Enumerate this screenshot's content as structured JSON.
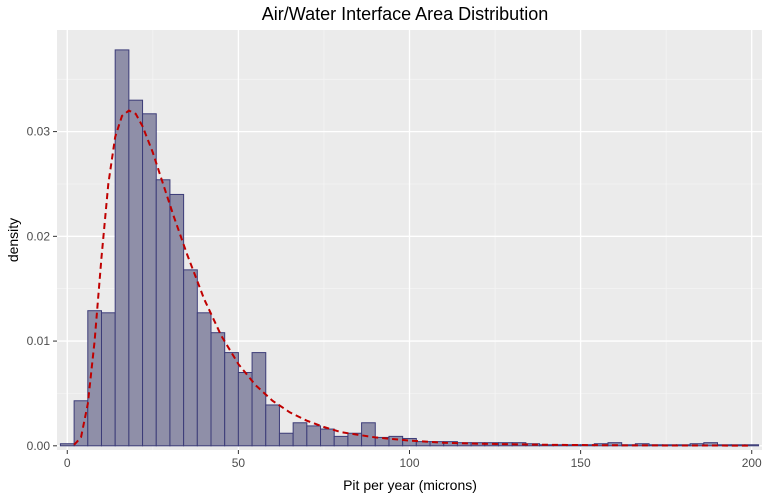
{
  "chart_data": {
    "type": "bar",
    "title": "Air/Water Interface Area Distribution",
    "xlabel": "Pit per year (microns)",
    "ylabel": "density",
    "xlim": [
      -3,
      203
    ],
    "ylim": [
      -0.0004,
      0.0397
    ],
    "x_ticks": [
      0,
      50,
      100,
      150,
      200
    ],
    "x_tick_labels": [
      "0",
      "50",
      "100",
      "150",
      "200"
    ],
    "y_ticks": [
      0,
      0.01,
      0.02,
      0.03
    ],
    "y_tick_labels": [
      "0.00",
      "0.01",
      "0.02",
      "0.03"
    ],
    "grid": true,
    "bin_width": 4,
    "bins_start": -2,
    "bin_values": [
      0.0002,
      0.0043,
      0.0129,
      0.0127,
      0.0378,
      0.033,
      0.0317,
      0.0254,
      0.024,
      0.0168,
      0.0127,
      0.0108,
      0.0089,
      0.007,
      0.0089,
      0.0039,
      0.0012,
      0.0022,
      0.0019,
      0.0016,
      0.0009,
      0.0012,
      0.0022,
      0.0008,
      0.0009,
      0.0007,
      0.0004,
      0.0004,
      0.0004,
      0.0003,
      0.0003,
      0.0003,
      0.0003,
      0.0003,
      0.0002,
      0.0001,
      0.0001,
      0.0001,
      0.0001,
      0.0002,
      0.0003,
      0.0001,
      0.0002,
      0.0001,
      0.0001,
      0.0001,
      0.0002,
      0.0003,
      0.0001,
      0.0001,
      0.0001
    ],
    "bar_fill": "#8f8fa8",
    "bar_stroke": "#3c3c78",
    "density_curve": {
      "style": "dashed",
      "color": "#c00000",
      "x": [
        2,
        4,
        6,
        8,
        10,
        12,
        14,
        16,
        18,
        20,
        22,
        25,
        28,
        31,
        35,
        40,
        45,
        50,
        55,
        60,
        65,
        70,
        75,
        80,
        90,
        100,
        110,
        120,
        140,
        160,
        180,
        200
      ],
      "y": [
        0.0001,
        0.0008,
        0.004,
        0.01,
        0.018,
        0.025,
        0.0295,
        0.0315,
        0.032,
        0.0317,
        0.0305,
        0.028,
        0.025,
        0.022,
        0.0183,
        0.014,
        0.0105,
        0.0078,
        0.0058,
        0.0043,
        0.0032,
        0.0024,
        0.0018,
        0.0013,
        0.0008,
        0.0005,
        0.0003,
        0.0002,
        0.0001,
        5e-05,
        3e-05,
        2e-05
      ]
    },
    "colors": {
      "panel_background": "#ebebeb",
      "grid_major": "#ffffff",
      "grid_minor": "#f5f5f5"
    }
  }
}
